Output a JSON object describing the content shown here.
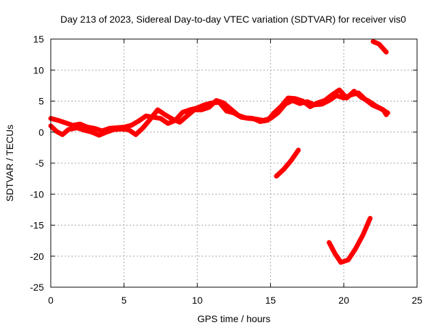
{
  "chart_data": {
    "type": "scatter",
    "title": "Day 213 of 2023, Sidereal Day-to-day VTEC variation (SDTVAR) for receiver vis0",
    "xlabel": "GPS time / hours",
    "ylabel": "SDTVAR / TECUs",
    "xlim": [
      0,
      25
    ],
    "ylim": [
      -25,
      15
    ],
    "xticks": [
      0,
      5,
      10,
      15,
      20,
      25
    ],
    "yticks": [
      15,
      10,
      5,
      0,
      -5,
      -10,
      -15,
      -20,
      -25
    ],
    "grid": true,
    "legend": "none",
    "color": "#ff0000",
    "series": [
      {
        "points": [
          [
            0.0,
            2.2
          ],
          [
            0.5,
            1.9
          ],
          [
            1.0,
            1.5
          ],
          [
            1.5,
            1.1
          ],
          [
            2.0,
            1.3
          ],
          [
            2.5,
            0.8
          ],
          [
            3.0,
            0.6
          ],
          [
            3.5,
            0.2
          ],
          [
            4.0,
            0.6
          ],
          [
            4.5,
            0.7
          ],
          [
            5.0,
            0.8
          ],
          [
            5.5,
            1.1
          ],
          [
            6.0,
            1.8
          ],
          [
            6.5,
            2.6
          ],
          [
            7.0,
            2.4
          ],
          [
            7.5,
            2.2
          ],
          [
            8.0,
            1.4
          ],
          [
            8.5,
            1.9
          ],
          [
            9.0,
            3.2
          ],
          [
            9.5,
            3.6
          ],
          [
            10.0,
            3.9
          ],
          [
            10.5,
            4.4
          ],
          [
            11.0,
            4.7
          ],
          [
            11.5,
            4.8
          ],
          [
            12.0,
            3.4
          ],
          [
            12.5,
            3.1
          ],
          [
            13.0,
            2.4
          ],
          [
            13.5,
            2.2
          ],
          [
            14.0,
            2.1
          ],
          [
            14.5,
            1.9
          ],
          [
            15.0,
            2.2
          ],
          [
            15.5,
            3.1
          ],
          [
            16.0,
            4.5
          ],
          [
            16.5,
            5.1
          ],
          [
            17.0,
            4.6
          ],
          [
            17.5,
            4.9
          ],
          [
            18.0,
            4.4
          ],
          [
            18.5,
            4.5
          ],
          [
            19.0,
            5.1
          ],
          [
            19.5,
            5.9
          ],
          [
            20.0,
            5.5
          ],
          [
            20.5,
            6.0
          ],
          [
            21.0,
            6.3
          ],
          [
            21.5,
            5.2
          ],
          [
            22.0,
            4.3
          ],
          [
            22.5,
            3.8
          ],
          [
            23.0,
            3.1
          ]
        ]
      },
      {
        "points": [
          [
            0.0,
            1.0
          ],
          [
            0.4,
            0.1
          ],
          [
            0.8,
            -0.4
          ],
          [
            1.2,
            0.4
          ],
          [
            1.8,
            0.7
          ],
          [
            2.3,
            0.3
          ],
          [
            2.8,
            0.0
          ],
          [
            3.3,
            -0.5
          ],
          [
            3.8,
            0.0
          ],
          [
            4.3,
            0.4
          ],
          [
            4.8,
            0.5
          ],
          [
            5.3,
            0.4
          ],
          [
            5.8,
            -0.4
          ],
          [
            6.3,
            0.7
          ],
          [
            6.8,
            2.1
          ],
          [
            7.3,
            3.6
          ],
          [
            7.8,
            2.8
          ],
          [
            8.3,
            2.1
          ],
          [
            8.8,
            1.6
          ],
          [
            9.3,
            2.6
          ],
          [
            9.8,
            3.6
          ],
          [
            10.3,
            3.6
          ],
          [
            10.8,
            4.0
          ],
          [
            11.3,
            5.1
          ],
          [
            11.8,
            4.7
          ],
          [
            12.3,
            3.7
          ],
          [
            12.8,
            2.7
          ],
          [
            13.3,
            2.3
          ],
          [
            13.8,
            2.2
          ],
          [
            14.3,
            1.7
          ],
          [
            14.8,
            1.9
          ],
          [
            15.2,
            3.0
          ],
          [
            15.7,
            4.1
          ],
          [
            16.2,
            5.5
          ],
          [
            16.7,
            5.4
          ],
          [
            17.2,
            5.0
          ],
          [
            17.7,
            4.1
          ],
          [
            18.2,
            4.7
          ],
          [
            18.7,
            5.1
          ],
          [
            19.2,
            6.0
          ],
          [
            19.7,
            6.8
          ],
          [
            20.2,
            5.5
          ],
          [
            20.7,
            6.6
          ],
          [
            21.2,
            5.6
          ],
          [
            21.7,
            5.0
          ],
          [
            22.2,
            4.2
          ],
          [
            22.7,
            3.6
          ],
          [
            22.9,
            2.8
          ]
        ]
      },
      {
        "points": [
          [
            15.4,
            -7.1
          ],
          [
            15.9,
            -6.0
          ],
          [
            16.4,
            -4.6
          ],
          [
            16.9,
            -2.9
          ]
        ]
      },
      {
        "points": [
          [
            19.0,
            -17.8
          ],
          [
            19.4,
            -19.6
          ],
          [
            19.8,
            -21.0
          ],
          [
            20.3,
            -20.6
          ],
          [
            20.8,
            -18.8
          ],
          [
            21.3,
            -16.6
          ],
          [
            21.8,
            -13.9
          ]
        ]
      },
      {
        "points": [
          [
            22.0,
            14.6
          ],
          [
            22.4,
            14.2
          ],
          [
            22.9,
            12.9
          ]
        ]
      }
    ]
  }
}
